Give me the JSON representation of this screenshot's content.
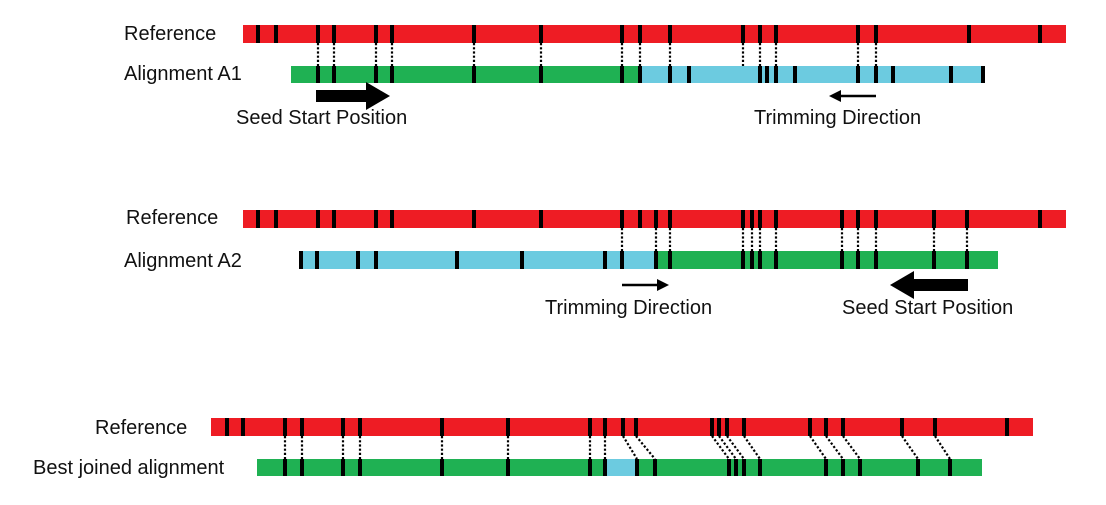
{
  "colors": {
    "reference": "#ee1c24",
    "match": "#1fb153",
    "trimmed": "#6ccbe0",
    "marker": "#000000"
  },
  "panels": [
    {
      "reference_label": "Reference",
      "alignment_label": "Alignment A1",
      "seed_label": "Seed Start Position",
      "trim_label": "Trimming Direction",
      "seed_arrow_direction": "right",
      "trim_arrow_direction": "left"
    },
    {
      "reference_label": "Reference",
      "alignment_label": "Alignment A2",
      "seed_label": "Seed Start Position",
      "trim_label": "Trimming Direction",
      "seed_arrow_direction": "left",
      "trim_arrow_direction": "right"
    },
    {
      "reference_label": "Reference",
      "alignment_label": "Best joined alignment"
    }
  ]
}
